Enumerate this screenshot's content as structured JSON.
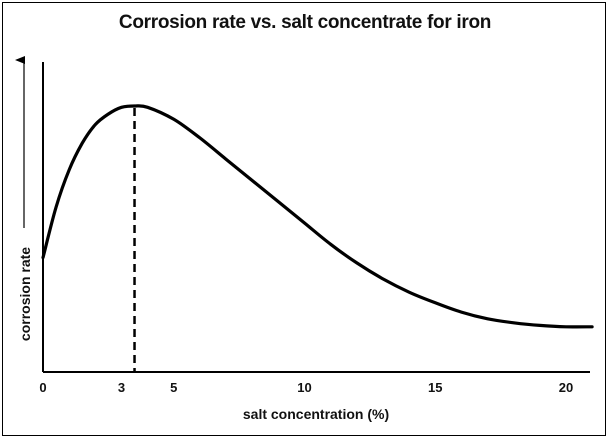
{
  "chart_data": {
    "type": "line",
    "title": "Corrosion rate vs. salt concentrate for iron",
    "xlabel": "salt concentration (%)",
    "ylabel": "corrosion rate",
    "xlim": [
      0,
      21.3
    ],
    "ylim": [
      0,
      1
    ],
    "x_ticks": [
      0,
      3,
      5,
      10,
      15,
      20
    ],
    "grid": false,
    "annotations": [
      {
        "type": "dashed-vertical-line",
        "x": 3.5,
        "y": 1.0
      }
    ],
    "series": [
      {
        "x": [
          0,
          0.5,
          1,
          1.5,
          2,
          2.5,
          3,
          3.5,
          4,
          5,
          6,
          7,
          8,
          9,
          10,
          11,
          12,
          13,
          14,
          15,
          16,
          17,
          18,
          19,
          20,
          21
        ],
        "y": [
          0.43,
          0.62,
          0.76,
          0.86,
          0.93,
          0.97,
          0.995,
          1.0,
          0.995,
          0.95,
          0.88,
          0.8,
          0.72,
          0.64,
          0.56,
          0.48,
          0.41,
          0.35,
          0.3,
          0.26,
          0.225,
          0.2,
          0.185,
          0.175,
          0.17,
          0.17
        ]
      }
    ]
  }
}
